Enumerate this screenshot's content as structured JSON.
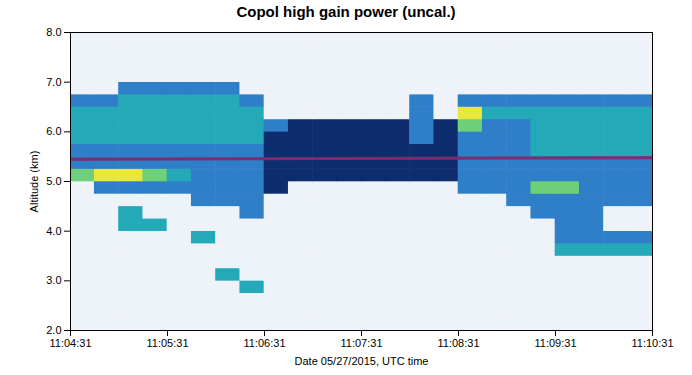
{
  "chart_data": {
    "type": "heatmap",
    "title": "Copol high gain power (uncal.)",
    "x_label": "Date 05/27/2015, UTC time",
    "y_label": "Altitude (km)",
    "xlim": [
      "11:04:31",
      "11:10:31"
    ],
    "xticks": [
      "11:04:31",
      "11:05:31",
      "11:06:31",
      "11:07:31",
      "11:08:31",
      "11:09:31",
      "11:10:31"
    ],
    "ylim": [
      2,
      8
    ],
    "yticks": [
      2,
      3,
      4,
      5,
      6,
      7,
      8
    ],
    "x_edges": [
      "11:04:31",
      "11:04:46",
      "11:05:01",
      "11:05:16",
      "11:05:31",
      "11:05:46",
      "11:06:01",
      "11:06:16",
      "11:06:31",
      "11:06:46",
      "11:07:01",
      "11:07:16",
      "11:07:31",
      "11:07:46",
      "11:08:01",
      "11:08:16",
      "11:08:31",
      "11:08:46",
      "11:09:01",
      "11:09:16",
      "11:09:31",
      "11:09:46",
      "11:10:01",
      "11:10:16",
      "11:10:31"
    ],
    "y_edges": [
      2,
      2.25,
      2.5,
      2.75,
      3,
      3.25,
      3.5,
      3.75,
      4,
      4.25,
      4.5,
      4.75,
      5,
      5.25,
      5.5,
      5.75,
      6,
      6.25,
      6.5,
      6.75,
      7,
      7.25,
      7.5,
      7.75,
      8
    ],
    "levels": [
      0,
      1,
      2,
      3,
      4,
      5
    ],
    "colors": [
      "#eef3f9",
      "#0d2d6e",
      "#2f7fc8",
      "#23a9b8",
      "#6fd07a",
      "#e8e83a"
    ],
    "z": [
      [
        0,
        0,
        0,
        0,
        0,
        0,
        0,
        0,
        0,
        0,
        0,
        0,
        0,
        0,
        0,
        0,
        0,
        0,
        0,
        0,
        0,
        0,
        0,
        0
      ],
      [
        0,
        0,
        0,
        0,
        0,
        0,
        0,
        0,
        0,
        0,
        0,
        0,
        0,
        0,
        0,
        0,
        0,
        0,
        0,
        0,
        0,
        0,
        0,
        0
      ],
      [
        0,
        0,
        0,
        0,
        0,
        0,
        0,
        0,
        0,
        0,
        0,
        0,
        0,
        0,
        0,
        0,
        0,
        0,
        0,
        0,
        0,
        0,
        0,
        0
      ],
      [
        0,
        0,
        0,
        0,
        0,
        0,
        0,
        3,
        0,
        0,
        0,
        0,
        0,
        0,
        0,
        0,
        0,
        0,
        0,
        0,
        0,
        0,
        0,
        0
      ],
      [
        0,
        0,
        0,
        0,
        0,
        0,
        3,
        0,
        0,
        0,
        0,
        0,
        0,
        0,
        0,
        0,
        0,
        0,
        0,
        0,
        0,
        0,
        0,
        0
      ],
      [
        0,
        0,
        0,
        0,
        0,
        0,
        0,
        0,
        0,
        0,
        0,
        0,
        0,
        0,
        0,
        0,
        0,
        0,
        0,
        0,
        0,
        0,
        0,
        0
      ],
      [
        0,
        0,
        0,
        0,
        0,
        0,
        0,
        0,
        0,
        0,
        0,
        0,
        0,
        0,
        0,
        0,
        0,
        0,
        0,
        0,
        3,
        3,
        3,
        3
      ],
      [
        0,
        0,
        0,
        0,
        0,
        3,
        0,
        0,
        0,
        0,
        0,
        0,
        0,
        0,
        0,
        0,
        0,
        0,
        0,
        0,
        2,
        2,
        2,
        2
      ],
      [
        0,
        0,
        3,
        3,
        0,
        0,
        0,
        0,
        0,
        0,
        0,
        0,
        0,
        0,
        0,
        0,
        0,
        0,
        0,
        0,
        2,
        2,
        0,
        0
      ],
      [
        0,
        0,
        3,
        0,
        0,
        0,
        0,
        2,
        0,
        0,
        0,
        0,
        0,
        0,
        0,
        0,
        0,
        0,
        0,
        2,
        2,
        2,
        0,
        0
      ],
      [
        0,
        0,
        0,
        0,
        0,
        2,
        2,
        2,
        0,
        0,
        0,
        0,
        0,
        0,
        0,
        0,
        0,
        0,
        2,
        2,
        2,
        2,
        2,
        2
      ],
      [
        0,
        2,
        2,
        2,
        2,
        2,
        2,
        2,
        1,
        0,
        0,
        0,
        0,
        0,
        0,
        0,
        2,
        2,
        2,
        4,
        4,
        2,
        2,
        2
      ],
      [
        4,
        5,
        5,
        4,
        3,
        2,
        2,
        2,
        1,
        1,
        1,
        1,
        1,
        1,
        1,
        1,
        2,
        2,
        2,
        2,
        2,
        2,
        2,
        2
      ],
      [
        2,
        2,
        2,
        2,
        2,
        2,
        2,
        2,
        1,
        1,
        1,
        1,
        1,
        1,
        1,
        1,
        2,
        2,
        2,
        2,
        2,
        2,
        2,
        2
      ],
      [
        2,
        2,
        2,
        2,
        2,
        2,
        2,
        2,
        1,
        1,
        1,
        1,
        1,
        1,
        1,
        1,
        2,
        2,
        2,
        3,
        3,
        3,
        3,
        3
      ],
      [
        3,
        3,
        3,
        3,
        3,
        3,
        3,
        3,
        1,
        1,
        1,
        1,
        1,
        1,
        2,
        1,
        2,
        2,
        2,
        3,
        3,
        3,
        3,
        3
      ],
      [
        3,
        3,
        3,
        3,
        3,
        3,
        3,
        3,
        2,
        1,
        1,
        1,
        1,
        1,
        2,
        1,
        4,
        2,
        2,
        3,
        3,
        3,
        3,
        3
      ],
      [
        3,
        3,
        3,
        3,
        3,
        3,
        3,
        3,
        0,
        0,
        0,
        0,
        0,
        0,
        2,
        0,
        5,
        3,
        3,
        3,
        3,
        3,
        3,
        3
      ],
      [
        2,
        2,
        3,
        3,
        3,
        3,
        3,
        2,
        0,
        0,
        0,
        0,
        0,
        0,
        2,
        0,
        2,
        2,
        2,
        2,
        2,
        2,
        2,
        2
      ],
      [
        0,
        0,
        2,
        2,
        2,
        2,
        2,
        0,
        0,
        0,
        0,
        0,
        0,
        0,
        0,
        0,
        0,
        0,
        0,
        0,
        0,
        0,
        0,
        0
      ],
      [
        0,
        0,
        0,
        0,
        0,
        0,
        0,
        0,
        0,
        0,
        0,
        0,
        0,
        0,
        0,
        0,
        0,
        0,
        0,
        0,
        0,
        0,
        0,
        0
      ],
      [
        0,
        0,
        0,
        0,
        0,
        0,
        0,
        0,
        0,
        0,
        0,
        0,
        0,
        0,
        0,
        0,
        0,
        0,
        0,
        0,
        0,
        0,
        0,
        0
      ],
      [
        0,
        0,
        0,
        0,
        0,
        0,
        0,
        0,
        0,
        0,
        0,
        0,
        0,
        0,
        0,
        0,
        0,
        0,
        0,
        0,
        0,
        0,
        0,
        0
      ],
      [
        0,
        0,
        0,
        0,
        0,
        0,
        0,
        0,
        0,
        0,
        0,
        0,
        0,
        0,
        0,
        0,
        0,
        0,
        0,
        0,
        0,
        0,
        0,
        0
      ]
    ],
    "line": {
      "x": [
        "11:04:31",
        "11:10:31"
      ],
      "values": [
        5.45,
        5.48
      ],
      "color": "#7b2d6e"
    }
  }
}
